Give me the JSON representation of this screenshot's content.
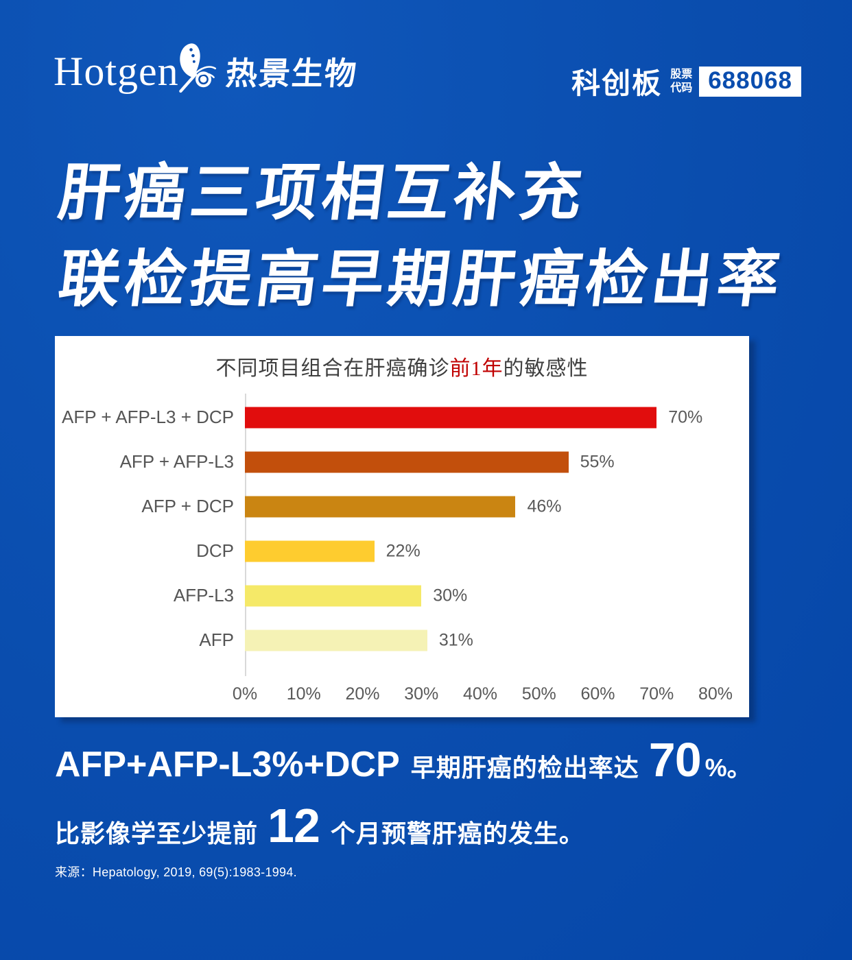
{
  "header": {
    "logo_en": "Hotgen",
    "logo_cn": "热景生物",
    "board_label": "科创板",
    "stock_label_line1": "股票",
    "stock_label_line2": "代码",
    "stock_code": "688068"
  },
  "title": {
    "line1": "肝癌三项相互补充",
    "line2": "联检提高早期肝癌检出率"
  },
  "chart_data": {
    "type": "bar",
    "orientation": "horizontal",
    "title": "不同项目组合在肝癌确诊前1年的敏感性",
    "title_prefix": "不同项目组合在肝癌确诊",
    "title_highlight": "前1年",
    "title_suffix": "的敏感性",
    "highlight_color": "#c00000",
    "categories": [
      "AFP + AFP-L3 + DCP",
      "AFP + AFP-L3",
      "AFP + DCP",
      "DCP",
      "AFP-L3",
      "AFP"
    ],
    "values": [
      70,
      55,
      46,
      22,
      30,
      31
    ],
    "value_labels": [
      "70%",
      "55%",
      "46%",
      "22%",
      "30%",
      "31%"
    ],
    "bar_colors": [
      "#e10d0d",
      "#c24f0c",
      "#ca8512",
      "#fecc2f",
      "#f5e968",
      "#f5f2b5"
    ],
    "x_ticks": [
      "0%",
      "10%",
      "20%",
      "30%",
      "40%",
      "50%",
      "60%",
      "70%",
      "80%"
    ],
    "xlim": [
      0,
      80
    ],
    "xlabel": "",
    "ylabel": "",
    "grid": false,
    "legend": false,
    "panel_background": "#ffffff"
  },
  "callout": {
    "line1_lead": "AFP+AFP-L3%+DCP",
    "line1_mid": "早期肝癌的检出率达",
    "line1_big": "70",
    "line1_tail": "%。",
    "line2_pre": "比影像学至少提前",
    "line2_big": "12",
    "line2_post": "个月预警肝癌的发生。"
  },
  "footer": {
    "source_label": "来源：",
    "source_text": "Hepatology, 2019, 69(5):1983-1994."
  },
  "colors": {
    "background": "#0a4dae",
    "bar_red": "#e10d0d",
    "label_gray": "#595959",
    "axis_gray": "#d9d9d9"
  }
}
